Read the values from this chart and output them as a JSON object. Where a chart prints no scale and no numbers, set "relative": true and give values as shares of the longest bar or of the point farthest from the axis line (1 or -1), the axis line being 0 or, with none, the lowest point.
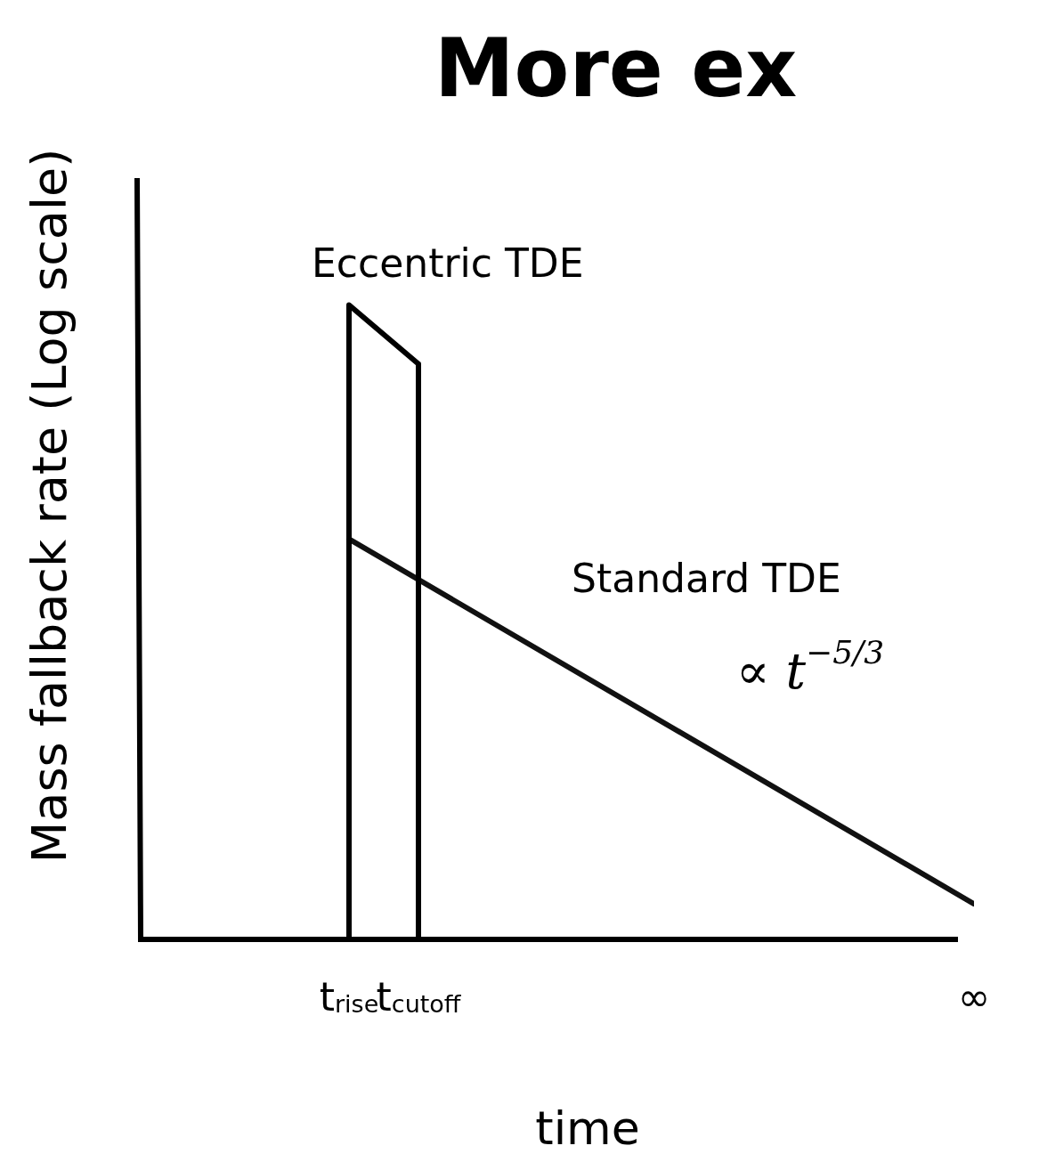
{
  "chart_data": {
    "type": "line",
    "title": "More ex",
    "xlabel": "time",
    "ylabel": "Mass fallback rate (Log scale)",
    "relative": true,
    "categories": [
      null,
      null,
      null,
      "t$_{rise}$",
      "t$_{cutoff}$",
      null,
      null,
      null,
      null,
      null,
      null,
      null,
      "∞"
    ],
    "series": [
      {
        "name": "Eccentric TDE",
        "color": "#000000",
        "x": [
          "t$_{rise}$",
          "t$_{rise}$",
          "t$_{cutoff}$",
          "t$_{cutoff}$"
        ],
        "values": [
          0,
          1,
          0.907,
          0
        ]
      },
      {
        "name": "Standard TDE",
        "color": "#111111",
        "x": [
          "t$_{rise}$",
          "∞"
        ],
        "values": [
          0.631,
          0.056
        ]
      }
    ],
    "annotations": [
      "∝ t$^{−5/3}$"
    ],
    "legend": false,
    "marker": "none",
    "line_style": "solid"
  }
}
